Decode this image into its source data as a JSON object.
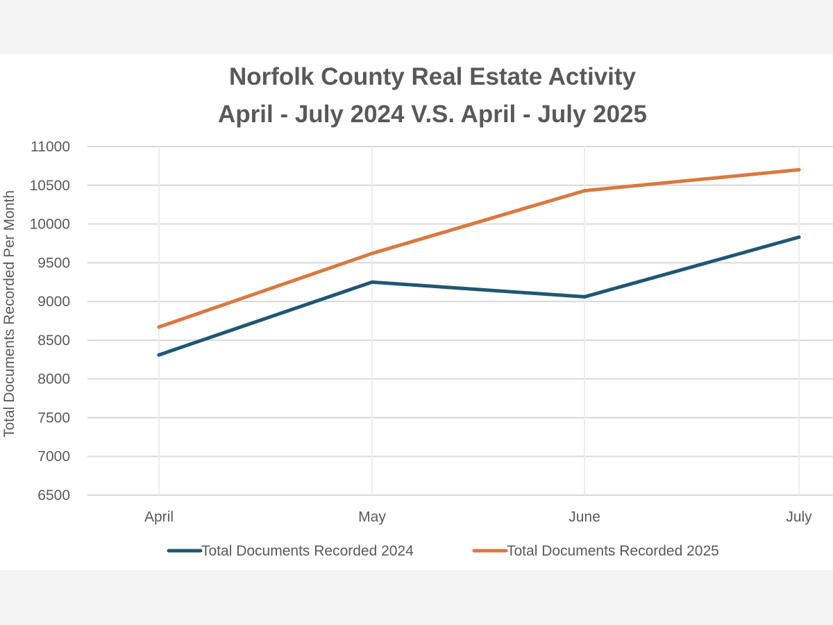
{
  "chart_data": {
    "type": "line",
    "title": "Norfolk County Real Estate Activity",
    "subtitle": "April - July 2024 V.S. April - July 2025",
    "xlabel": "",
    "ylabel": "Total Documents Recorded Per Month",
    "categories": [
      "April",
      "May",
      "June",
      "July"
    ],
    "ylim": [
      6500,
      11000
    ],
    "yticks": [
      6500,
      7000,
      7500,
      8000,
      8500,
      9000,
      9500,
      10000,
      10500,
      11000
    ],
    "grid": true,
    "legend_position": "bottom",
    "series": [
      {
        "name": "Total Documents Recorded 2024",
        "color": "#1f5773",
        "values": [
          8310,
          9250,
          9060,
          9830
        ]
      },
      {
        "name": "Total Documents Recorded 2025",
        "color": "#d9793f",
        "values": [
          8670,
          9620,
          10430,
          10700
        ]
      }
    ]
  }
}
